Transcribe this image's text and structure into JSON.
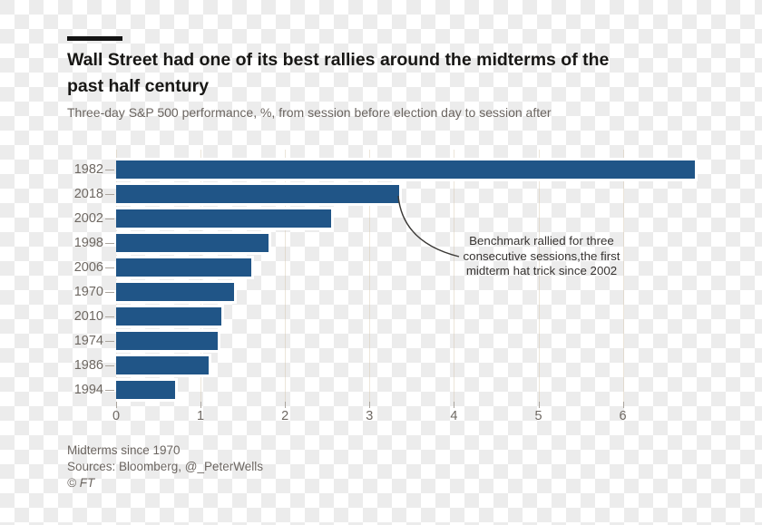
{
  "header": {
    "title_lines": [
      "Wall Street had one of its best rallies around the midterms of the",
      "past half century"
    ],
    "subtitle": "Three-day S&P 500 performance, %, from session before election day to session after"
  },
  "chart_data": {
    "type": "bar",
    "orientation": "horizontal",
    "title": "Wall Street had one of its best rallies around the midterms of the past half century",
    "subtitle": "Three-day S&P 500 performance, %, from session before election day to session after",
    "categories": [
      "1982",
      "2018",
      "2002",
      "1998",
      "2006",
      "1970",
      "2010",
      "1974",
      "1986",
      "1994"
    ],
    "values": [
      6.85,
      3.35,
      2.55,
      1.8,
      1.6,
      1.4,
      1.25,
      1.2,
      1.1,
      0.7
    ],
    "xticks": [
      "0",
      "1",
      "2",
      "3",
      "4",
      "5",
      "6"
    ],
    "xlim": [
      0,
      6.9
    ],
    "xlabel": "",
    "ylabel": "",
    "grid": "vertical-light",
    "legend": "none",
    "bar_color": "#205587",
    "annotation": {
      "text": "Benchmark rallied for three\nconsecutive sessions,the first\nmidterm hat trick since 2002",
      "points_to_category": "2018"
    }
  },
  "footer": {
    "note": "Midterms since 1970",
    "sources": "Sources: Bloomberg, @_PeterWells",
    "copyright": "© FT"
  }
}
